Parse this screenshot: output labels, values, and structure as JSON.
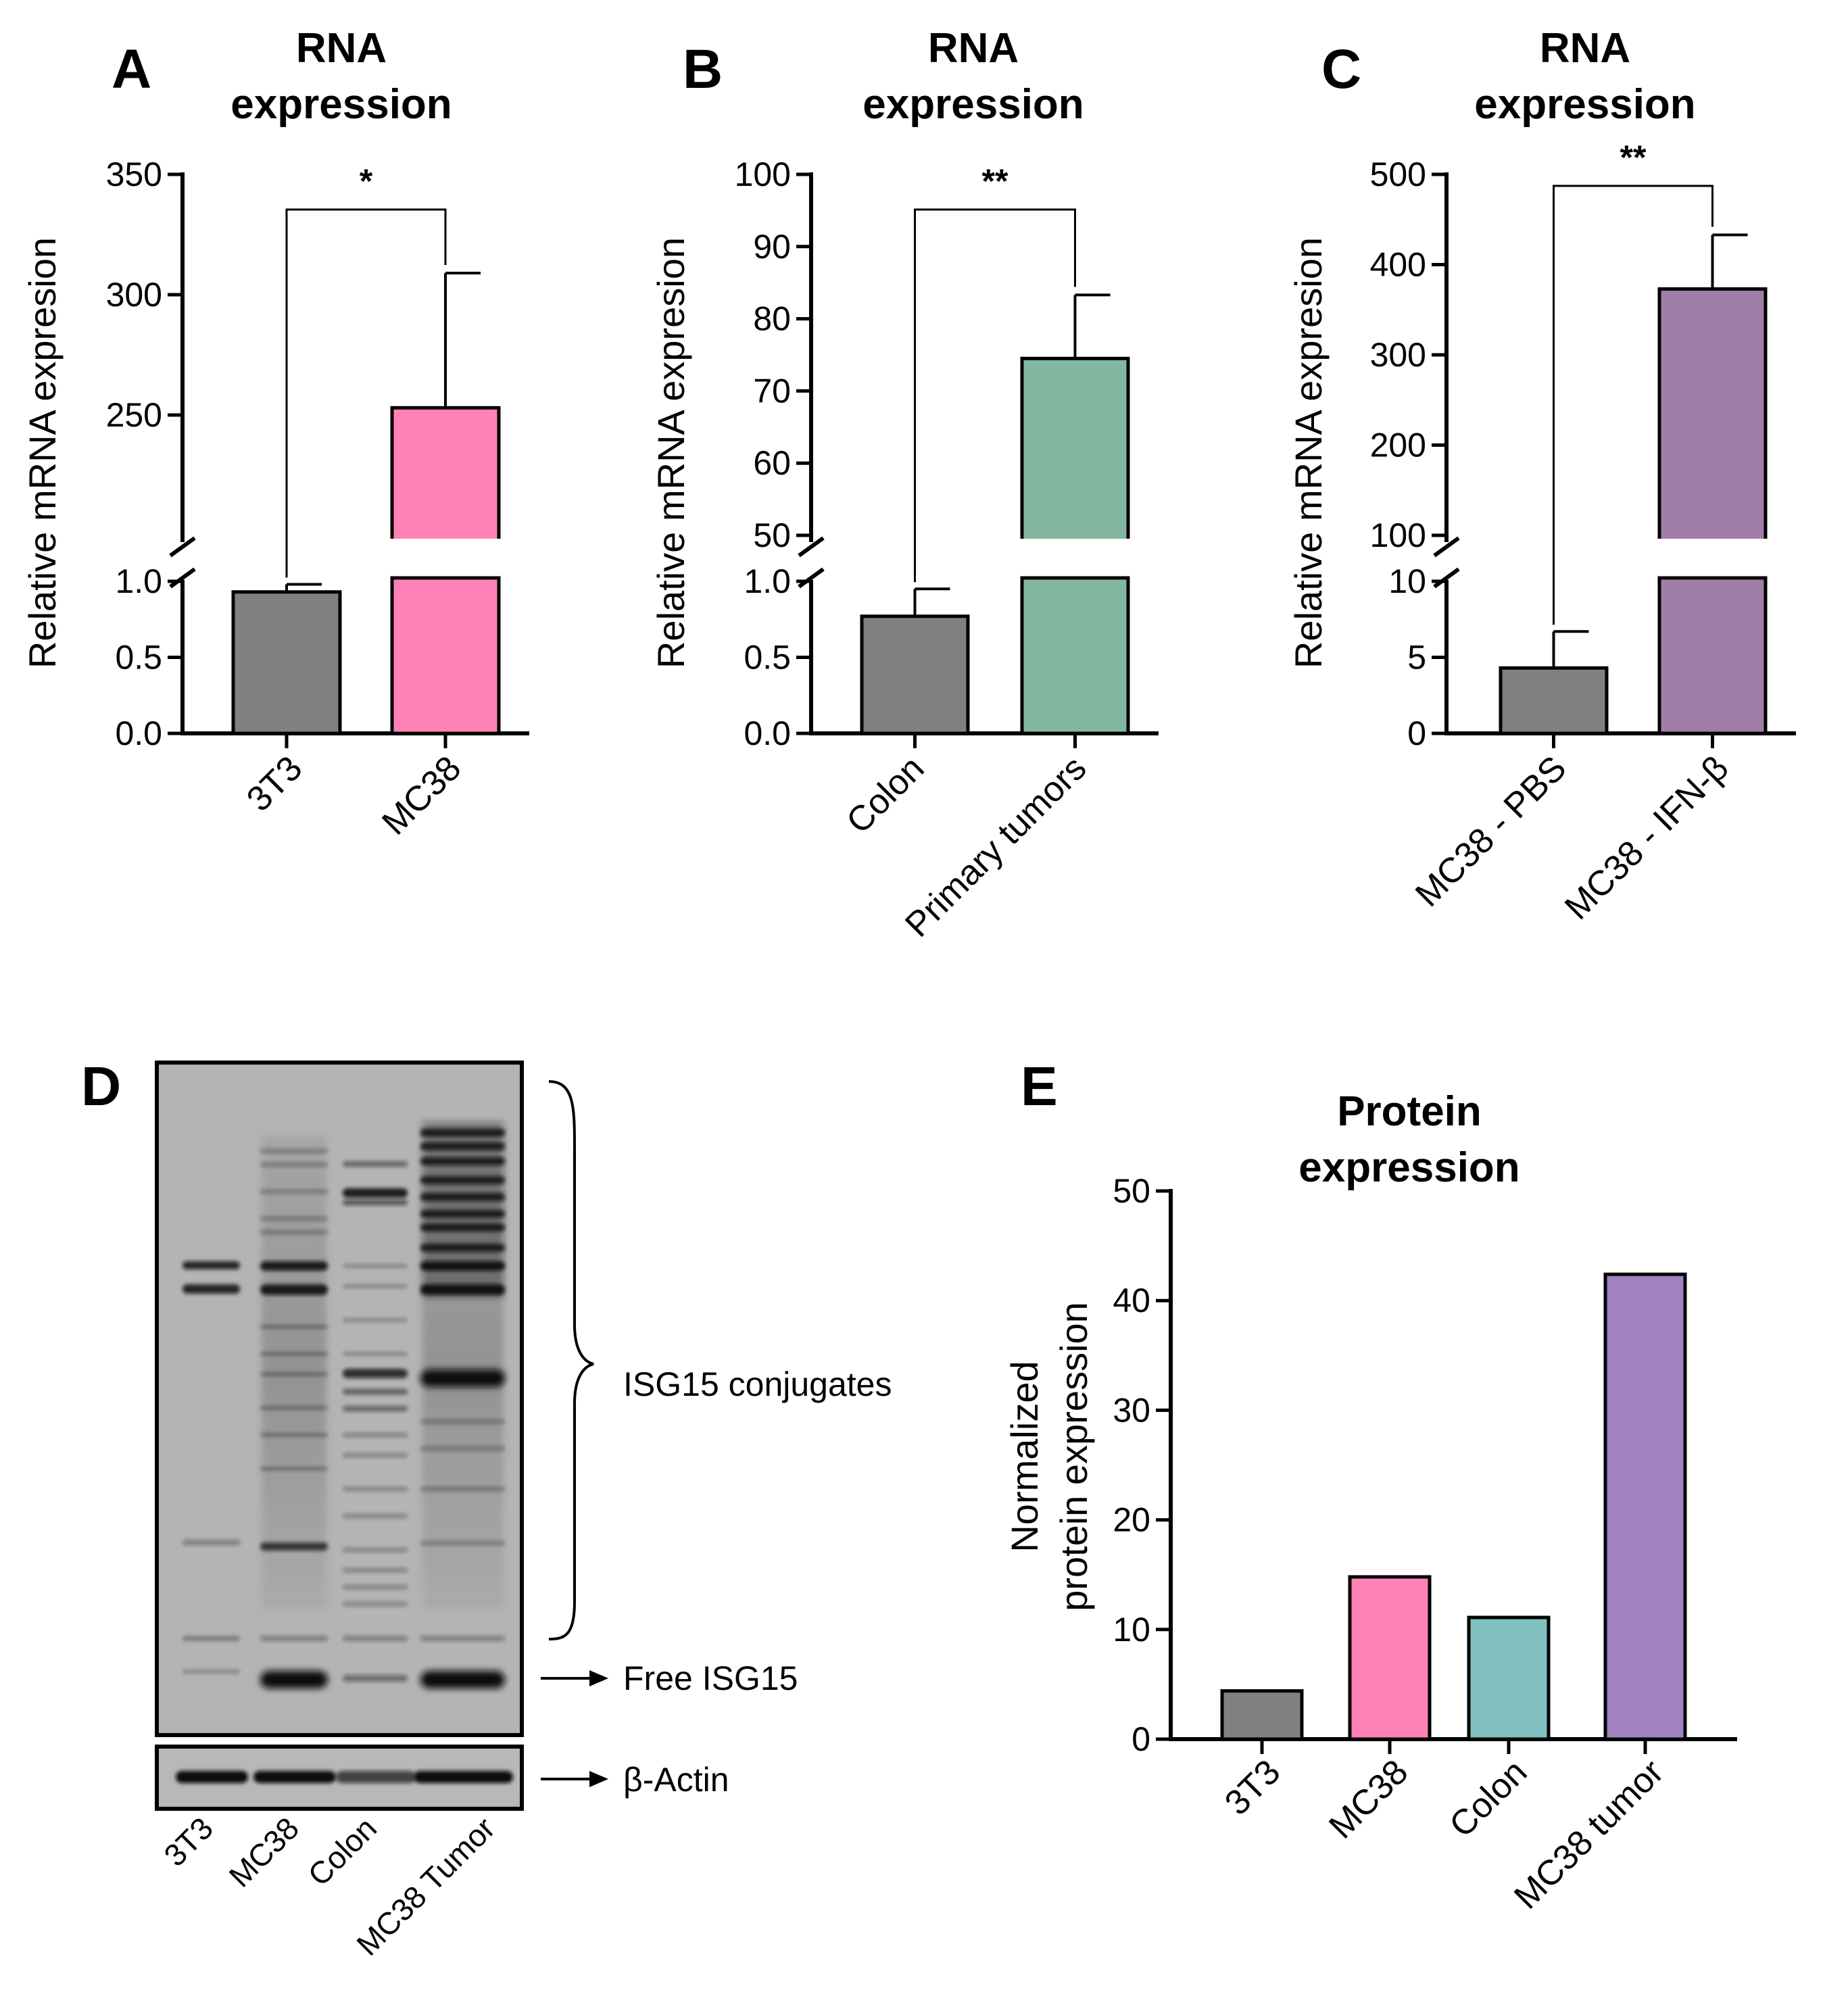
{
  "chart_data": [
    {
      "id": "A",
      "type": "bar",
      "panel_label": "A",
      "title": [
        "RNA",
        "expression"
      ],
      "ylabel": "Relative mRNA expresion",
      "categories": [
        "3T3",
        "MC38"
      ],
      "values": [
        0.93,
        253
      ],
      "errors": [
        0.05,
        56
      ],
      "colors": [
        "#808080",
        "#ff82b6"
      ],
      "y_axis_break": {
        "lower": {
          "range": [
            0,
            1.0
          ],
          "ticks": [
            "0.0",
            "0.5",
            "1.0"
          ]
        },
        "upper": {
          "range": [
            200,
            350
          ],
          "ticks": [
            "250",
            "300",
            "350"
          ]
        }
      },
      "significance": "*"
    },
    {
      "id": "B",
      "type": "bar",
      "panel_label": "B",
      "title": [
        "RNA",
        "expression"
      ],
      "ylabel": "Relative mRNA expresion",
      "categories": [
        "Colon",
        "Primary tumors"
      ],
      "values": [
        0.77,
        74.5
      ],
      "errors": [
        0.18,
        8.8
      ],
      "colors": [
        "#808080",
        "#82b6a0"
      ],
      "y_axis_break": {
        "lower": {
          "range": [
            0,
            1.0
          ],
          "ticks": [
            "0.0",
            "0.5",
            "1.0"
          ]
        },
        "upper": {
          "range": [
            50,
            100
          ],
          "ticks": [
            "50",
            "60",
            "70",
            "80",
            "90",
            "100"
          ]
        }
      },
      "significance": "**"
    },
    {
      "id": "C",
      "type": "bar",
      "panel_label": "C",
      "title": [
        "RNA",
        "expression"
      ],
      "ylabel": "Relative mRNA expresion",
      "categories": [
        "MC38 - PBS",
        "MC38 - IFN-β"
      ],
      "values": [
        4.3,
        373
      ],
      "errors": [
        2.4,
        60
      ],
      "colors": [
        "#808080",
        "#a07ea8"
      ],
      "y_axis_break": {
        "lower": {
          "range": [
            0,
            10
          ],
          "ticks": [
            "0",
            "5",
            "10"
          ]
        },
        "upper": {
          "range": [
            100,
            500
          ],
          "ticks": [
            "100",
            "200",
            "300",
            "400",
            "500"
          ]
        }
      },
      "significance": "**"
    },
    {
      "id": "E",
      "type": "bar",
      "panel_label": "E",
      "title": [
        "Protein",
        "expression"
      ],
      "ylabel": [
        "Normalized",
        "protein expression"
      ],
      "categories": [
        "3T3",
        "MC38",
        "Colon",
        "MC38 tumor"
      ],
      "values": [
        4.4,
        14.8,
        11.1,
        42.4
      ],
      "colors": [
        "#808080",
        "#ff82b6",
        "#82c0c0",
        "#a082c0"
      ],
      "ylim": [
        0,
        50
      ],
      "yticks": [
        "0",
        "10",
        "20",
        "30",
        "40",
        "50"
      ]
    }
  ],
  "blot": {
    "panel_label": "D",
    "lanes": [
      "3T3",
      "MC38",
      "Colon",
      "MC38 Tumor"
    ],
    "annotations": {
      "conjugates": "ISG15 conjugates",
      "free": "Free ISG15",
      "actin": "β-Actin"
    }
  }
}
